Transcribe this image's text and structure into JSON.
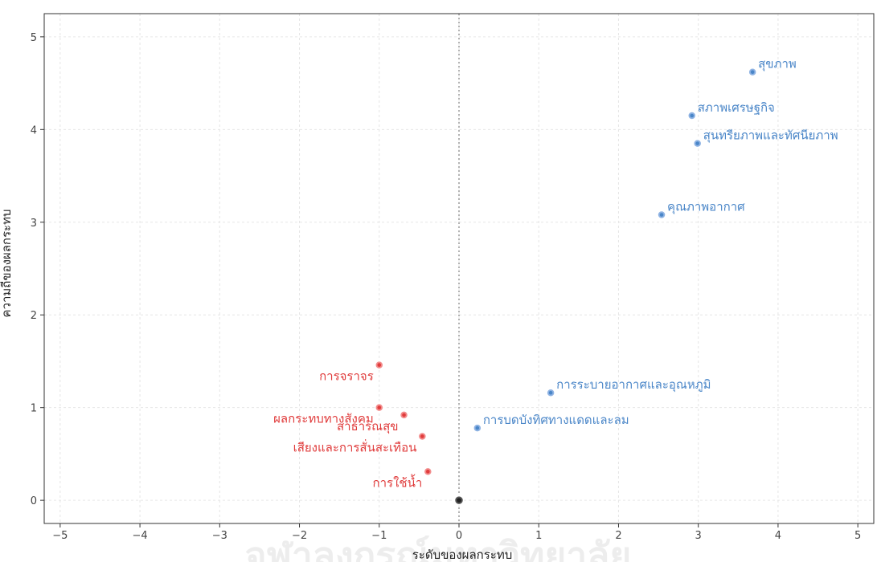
{
  "chart_data": {
    "type": "scatter",
    "xlabel": "ระดับของผลกระทบ",
    "ylabel": "ความถี่ของผลกระทบ",
    "xlim": [
      -5.2,
      5.2
    ],
    "ylim": [
      -0.25,
      5.25
    ],
    "xticks": [
      -5,
      -4,
      -3,
      -2,
      -1,
      0,
      1,
      2,
      3,
      4,
      5
    ],
    "yticks": [
      0,
      1,
      2,
      3,
      4,
      5
    ],
    "grid": true,
    "colors": {
      "positive": "#4a86c8",
      "positive_fill": "#8fb3e3",
      "negative": "#e03c3c",
      "negative_fill": "#f28b8b",
      "origin": "#222222"
    },
    "origin_point": {
      "x": 0,
      "y": 0
    },
    "series": [
      {
        "group": "positive",
        "points": [
          {
            "label": "สุขภาพ",
            "x": 3.68,
            "y": 4.62
          },
          {
            "label": "สภาพเศรษฐกิจ",
            "x": 2.92,
            "y": 4.15
          },
          {
            "label": "สุนทรียภาพและทัศนียภาพ",
            "x": 2.99,
            "y": 3.85
          },
          {
            "label": "คุณภาพอากาศ",
            "x": 2.54,
            "y": 3.08
          },
          {
            "label": "การระบายอากาศและอุณหภูมิ",
            "x": 1.15,
            "y": 1.16
          },
          {
            "label": "การบดบังทิศทางแดดและลม",
            "x": 0.23,
            "y": 0.78
          }
        ]
      },
      {
        "group": "negative",
        "points": [
          {
            "label": "การจราจร",
            "x": -1.0,
            "y": 1.46
          },
          {
            "label": "ผลกระทบทางสังคม",
            "x": -1.0,
            "y": 1.0
          },
          {
            "label": "สาธารณสุข",
            "x": -0.69,
            "y": 0.92
          },
          {
            "label": "เสียงและการสั่นสะเทือน",
            "x": -0.46,
            "y": 0.69
          },
          {
            "label": "การใช้น้ำ",
            "x": -0.39,
            "y": 0.31
          }
        ]
      }
    ]
  },
  "watermark": "จุฬาลงกรณ์มหาวิทยาลัย"
}
